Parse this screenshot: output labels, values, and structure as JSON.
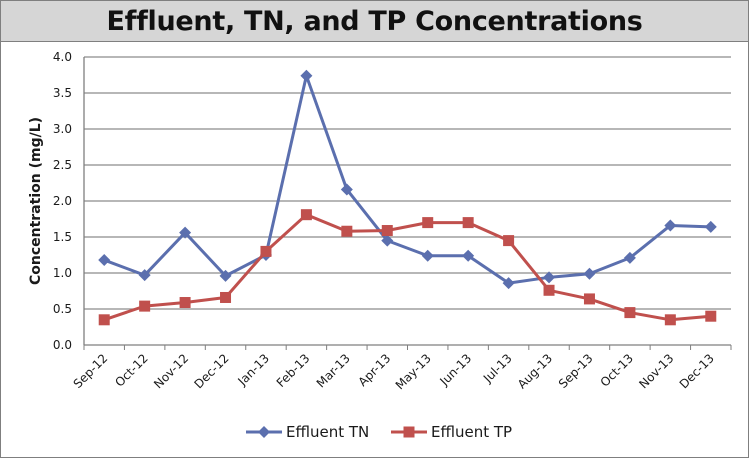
{
  "chart_data": {
    "type": "line",
    "title": "Effluent, TN, and TP Concentrations",
    "xlabel": "",
    "ylabel": "Concentration (mg/L)",
    "ylim": [
      0,
      4.0
    ],
    "yticks": [
      "0.0",
      "0.5",
      "1.0",
      "1.5",
      "2.0",
      "2.5",
      "3.0",
      "3.5",
      "4.0"
    ],
    "grid": true,
    "legend_position": "bottom",
    "categories": [
      "Sep-12",
      "Oct-12",
      "Nov-12",
      "Dec-12",
      "Jan-13",
      "Feb-13",
      "Mar-13",
      "Apr-13",
      "May-13",
      "Jun-13",
      "Jul-13",
      "Aug-13",
      "Sep-13",
      "Oct-13",
      "Nov-13",
      "Dec-13"
    ],
    "series": [
      {
        "name": "Effluent TN",
        "color": "#5b6fae",
        "marker": "diamond",
        "values": [
          1.18,
          0.97,
          1.56,
          0.96,
          1.25,
          3.74,
          2.16,
          1.45,
          1.24,
          1.24,
          0.86,
          0.94,
          0.99,
          1.21,
          1.66,
          1.64
        ]
      },
      {
        "name": "Effluent TP",
        "color": "#c0504d",
        "marker": "square",
        "values": [
          0.35,
          0.54,
          0.59,
          0.66,
          1.3,
          1.81,
          1.58,
          1.59,
          1.7,
          1.7,
          1.45,
          0.76,
          0.64,
          0.45,
          0.35,
          0.4
        ]
      }
    ]
  }
}
